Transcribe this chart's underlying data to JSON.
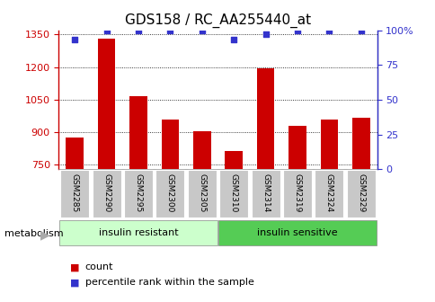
{
  "title": "GDS158 / RC_AA255440_at",
  "categories": [
    "GSM2285",
    "GSM2290",
    "GSM2295",
    "GSM2300",
    "GSM2305",
    "GSM2310",
    "GSM2314",
    "GSM2319",
    "GSM2324",
    "GSM2329"
  ],
  "bar_values": [
    875,
    1330,
    1065,
    960,
    905,
    815,
    1195,
    930,
    960,
    965
  ],
  "percentile_values": [
    93,
    100,
    100,
    100,
    100,
    93,
    97,
    100,
    100,
    100
  ],
  "ylim_left": [
    730,
    1370
  ],
  "ylim_right": [
    0,
    100
  ],
  "yticks_left": [
    750,
    900,
    1050,
    1200,
    1350
  ],
  "yticks_right": [
    0,
    25,
    50,
    75,
    100
  ],
  "bar_color": "#cc0000",
  "dot_color": "#3333cc",
  "group1_label": "insulin resistant",
  "group2_label": "insulin sensitive",
  "group1_color": "#ccffcc",
  "group2_color": "#55cc55",
  "xticklabel_bg": "#c8c8c8",
  "metabolism_label": "metabolism",
  "metabolism_arrow": "▶",
  "legend_count_label": "count",
  "legend_percentile_label": "percentile rank within the sample",
  "title_fontsize": 11,
  "tick_fontsize": 8,
  "label_fontsize": 8,
  "bar_width": 0.55
}
